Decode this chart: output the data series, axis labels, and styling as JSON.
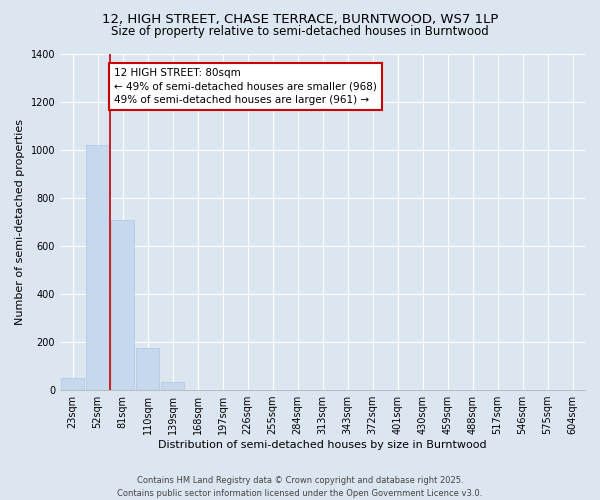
{
  "title1": "12, HIGH STREET, CHASE TERRACE, BURNTWOOD, WS7 1LP",
  "title2": "Size of property relative to semi-detached houses in Burntwood",
  "xlabel": "Distribution of semi-detached houses by size in Burntwood",
  "ylabel": "Number of semi-detached properties",
  "categories": [
    "23sqm",
    "52sqm",
    "81sqm",
    "110sqm",
    "139sqm",
    "168sqm",
    "197sqm",
    "226sqm",
    "255sqm",
    "284sqm",
    "313sqm",
    "343sqm",
    "372sqm",
    "401sqm",
    "430sqm",
    "459sqm",
    "488sqm",
    "517sqm",
    "546sqm",
    "575sqm",
    "604sqm"
  ],
  "values": [
    50,
    1020,
    710,
    175,
    33,
    0,
    0,
    0,
    0,
    0,
    0,
    0,
    0,
    0,
    0,
    0,
    0,
    0,
    0,
    0,
    0
  ],
  "bar_color": "#c5d8ee",
  "bar_edge_color": "#b0c8e0",
  "redline_x": 1.5,
  "annotation_title": "12 HIGH STREET: 80sqm",
  "annotation_line1": "← 49% of semi-detached houses are smaller (968)",
  "annotation_line2": "49% of semi-detached houses are larger (961) →",
  "annotation_box_color": "#ffffff",
  "annotation_box_edgecolor": "#cc0000",
  "redline_color": "#cc0000",
  "ylim": [
    0,
    1400
  ],
  "yticks": [
    0,
    200,
    400,
    600,
    800,
    1000,
    1200,
    1400
  ],
  "background_color": "#dce6f1",
  "plot_background_color": "#dce6f1",
  "footer1": "Contains HM Land Registry data © Crown copyright and database right 2025.",
  "footer2": "Contains public sector information licensed under the Open Government Licence v3.0.",
  "title_fontsize": 9.5,
  "subtitle_fontsize": 8.5,
  "tick_fontsize": 7,
  "ylabel_fontsize": 8,
  "xlabel_fontsize": 8,
  "annotation_fontsize": 7.5,
  "footer_fontsize": 6
}
